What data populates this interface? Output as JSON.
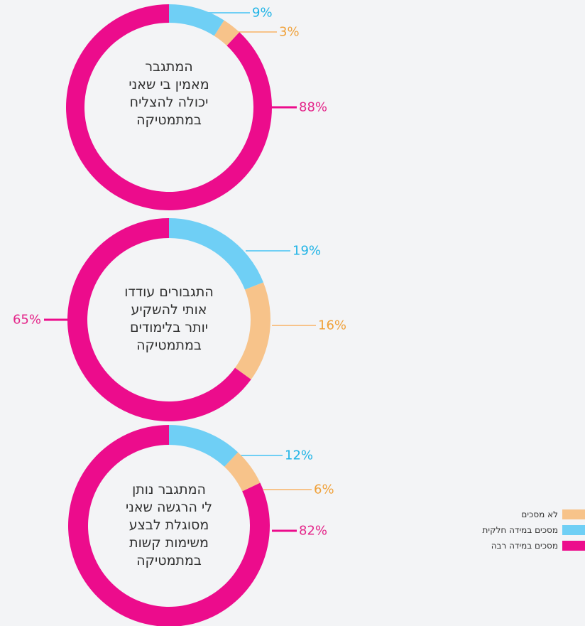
{
  "colors": {
    "not_agree": "#f7c38a",
    "partly_agree": "#6fcff5",
    "strongly_agree": "#ec0c8c",
    "not_agree_text": "#f0a13a",
    "partly_agree_text": "#21b4e6",
    "strongly_agree_text": "#e4268a"
  },
  "legend": [
    {
      "key": "not_agree",
      "label": "לא מסכים"
    },
    {
      "key": "partly_agree",
      "label": "מסכים במידה חלקית"
    },
    {
      "key": "strongly_agree",
      "label": "מסכים במידה רבה"
    }
  ],
  "chart_data": [
    {
      "type": "pie",
      "title_lines": [
        "המתגבר",
        "מאמין בי שאני",
        "יכולה להצליח",
        "במתמטיקה"
      ],
      "slices": [
        {
          "key": "partly_agree",
          "value": 9,
          "label": "9%"
        },
        {
          "key": "not_agree",
          "value": 3,
          "label": "3%"
        },
        {
          "key": "strongly_agree",
          "value": 88,
          "label": "88%"
        }
      ]
    },
    {
      "type": "pie",
      "title_lines": [
        "התגבורים עודדו",
        "אותי להשקיע",
        "יותר בלימודים",
        "במתמטיקה"
      ],
      "slices": [
        {
          "key": "partly_agree",
          "value": 19,
          "label": "19%"
        },
        {
          "key": "not_agree",
          "value": 16,
          "label": "16%"
        },
        {
          "key": "strongly_agree",
          "value": 65,
          "label": "65%"
        }
      ]
    },
    {
      "type": "pie",
      "title_lines": [
        "המתגבר נותן",
        "לי הרגשה שאני",
        "מסוגלת לבצע",
        "משימות קשות",
        "במתמטיקה"
      ],
      "slices": [
        {
          "key": "partly_agree",
          "value": 12,
          "label": "12%"
        },
        {
          "key": "not_agree",
          "value": 6,
          "label": "6%"
        },
        {
          "key": "strongly_agree",
          "value": 82,
          "label": "82%"
        }
      ]
    }
  ]
}
